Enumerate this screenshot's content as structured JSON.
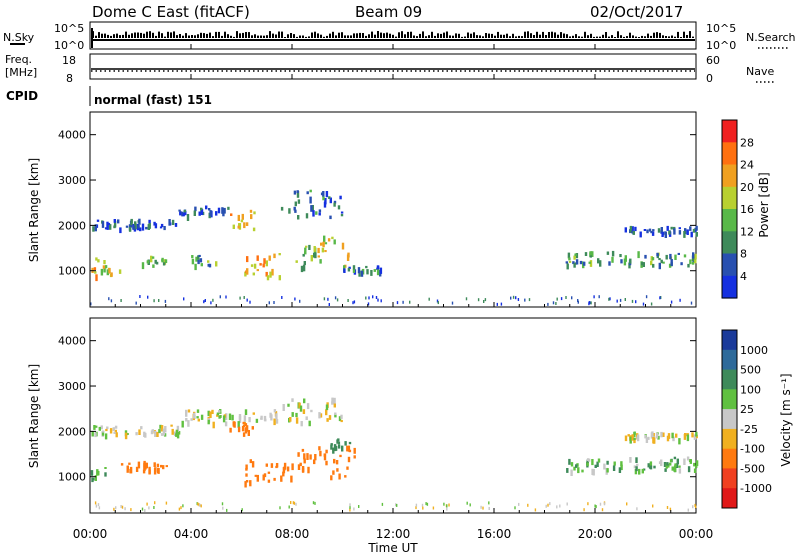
{
  "header": {
    "station": "Dome C East (fitACF)",
    "beam": "Beam 09",
    "date": "02/Oct/2017"
  },
  "top_panels": {
    "nsky_label": "N.Sky",
    "nsky_ticks": [
      "10^5",
      "10^0"
    ],
    "nsearch_label": "N.Search",
    "nsearch_ticks": [
      "10^5",
      "10^0"
    ],
    "freq_label": "Freq.",
    "freq_unit": "[MHz]",
    "freq_ticks": [
      "18",
      "8"
    ],
    "nave_label": "Nave",
    "nave_ticks": [
      "60",
      "0"
    ],
    "cpid_label": "CPID",
    "cpid_value": "normal (fast) 151"
  },
  "axes": {
    "ylabel": "Slant Range [km]",
    "y_ticks": [
      "1000",
      "2000",
      "3000",
      "4000"
    ],
    "xlabel": "Time UT",
    "x_ticks": [
      "00:00",
      "04:00",
      "08:00",
      "12:00",
      "16:00",
      "20:00",
      "00:00"
    ]
  },
  "colorbars": {
    "power": {
      "label": "Power [dB]",
      "ticks": [
        "4",
        "8",
        "12",
        "16",
        "20",
        "24",
        "28"
      ],
      "colors": [
        "#1530e0",
        "#2850b0",
        "#3e8a5a",
        "#58b848",
        "#b8d030",
        "#f0a020",
        "#ff7010",
        "#f02020"
      ]
    },
    "velocity": {
      "label": "Velocity [m s⁻¹]",
      "ticks": [
        "1000",
        "500",
        "100",
        "25",
        "-25",
        "-100",
        "-500",
        "-1000"
      ],
      "colors": [
        "#1a3a9a",
        "#2e6a9a",
        "#3e8a5a",
        "#60c040",
        "#c8c8c8",
        "#f0b020",
        "#ff7a10",
        "#f04020",
        "#e01818"
      ]
    }
  },
  "chart_data": [
    {
      "type": "heatmap",
      "title": "Power",
      "x_range_hours": [
        0,
        24
      ],
      "ylim": [
        200,
        4500
      ],
      "regions": [
        {
          "t0": 0.0,
          "t1": 1.2,
          "r0": 900,
          "r1": 1300,
          "value": 20
        },
        {
          "t0": 0.0,
          "t1": 3.5,
          "r0": 1950,
          "r1": 2150,
          "value": 6
        },
        {
          "t0": 2.0,
          "t1": 3.0,
          "r0": 1100,
          "r1": 1350,
          "value": 14
        },
        {
          "t0": 3.5,
          "t1": 5.5,
          "r0": 2250,
          "r1": 2450,
          "value": 6
        },
        {
          "t0": 4.0,
          "t1": 5.0,
          "r0": 1150,
          "r1": 1350,
          "value": 12
        },
        {
          "t0": 5.5,
          "t1": 6.5,
          "r0": 1950,
          "r1": 2350,
          "value": 20
        },
        {
          "t0": 6.0,
          "t1": 7.5,
          "r0": 900,
          "r1": 1400,
          "value": 22
        },
        {
          "t0": 7.5,
          "t1": 10.0,
          "r0": 2200,
          "r1": 2800,
          "value": 8
        },
        {
          "t0": 8.0,
          "t1": 9.0,
          "r0": 1100,
          "r1": 1600,
          "value": 14
        },
        {
          "t0": 9.0,
          "t1": 10.2,
          "r0": 1100,
          "r1": 1800,
          "value": 18
        },
        {
          "t0": 10.0,
          "t1": 11.5,
          "r0": 1000,
          "r1": 1150,
          "value": 8
        },
        {
          "t0": 18.8,
          "t1": 24.0,
          "r0": 1150,
          "r1": 1450,
          "value": 12
        },
        {
          "t0": 21.0,
          "t1": 24.0,
          "r0": 1850,
          "r1": 2000,
          "value": 6
        }
      ]
    },
    {
      "type": "heatmap",
      "title": "Velocity",
      "x_range_hours": [
        0,
        24
      ],
      "ylim": [
        200,
        4500
      ],
      "regions": [
        {
          "t0": 0.0,
          "t1": 0.6,
          "r0": 900,
          "r1": 1400,
          "value": 150
        },
        {
          "t0": 0.0,
          "t1": 3.5,
          "r0": 1950,
          "r1": 2150,
          "value": 0
        },
        {
          "t0": 1.2,
          "t1": 3.0,
          "r0": 1150,
          "r1": 1350,
          "value": -200
        },
        {
          "t0": 3.5,
          "t1": 7.5,
          "r0": 2200,
          "r1": 2500,
          "value": 0
        },
        {
          "t0": 5.5,
          "t1": 6.5,
          "r0": 1950,
          "r1": 2250,
          "value": -300
        },
        {
          "t0": 6.0,
          "t1": 8.0,
          "r0": 900,
          "r1": 1400,
          "value": -300
        },
        {
          "t0": 7.5,
          "t1": 10.0,
          "r0": 2200,
          "r1": 2800,
          "value": 0
        },
        {
          "t0": 8.0,
          "t1": 10.5,
          "r0": 1000,
          "r1": 1700,
          "value": -200
        },
        {
          "t0": 9.5,
          "t1": 10.5,
          "r0": 1600,
          "r1": 1850,
          "value": 300
        },
        {
          "t0": 18.8,
          "t1": 24.0,
          "r0": 1150,
          "r1": 1450,
          "value": 80
        },
        {
          "t0": 21.0,
          "t1": 24.0,
          "r0": 1850,
          "r1": 2000,
          "value": 0
        }
      ]
    }
  ]
}
